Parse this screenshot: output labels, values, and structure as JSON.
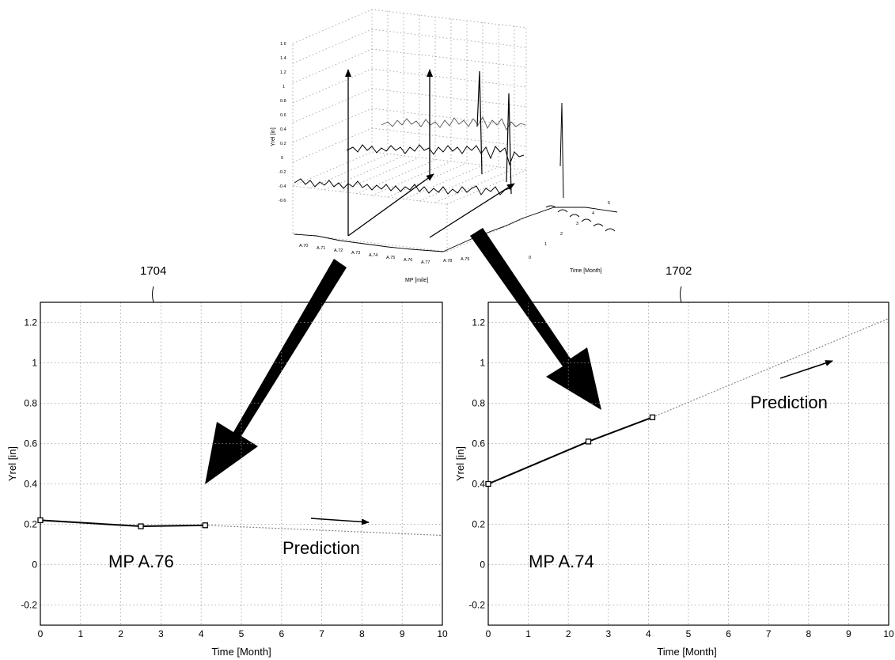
{
  "figure": {
    "ref_left": "1704",
    "ref_right": "1702"
  },
  "top_plot": {
    "type": "3d-line",
    "ylabel": "Yrel [in]",
    "xlabel": "MP [mile]",
    "zlabel": "Time [Month]",
    "mp_ticks": [
      "A.70",
      "A.71",
      "A.72",
      "A.73",
      "A.74",
      "A.75",
      "A.76",
      "A.77",
      "A.78",
      "A.79"
    ],
    "yrel_ticks": [
      "-0.6",
      "-0.4",
      "-0.2",
      "0",
      "0.2",
      "0.4",
      "0.6",
      "0.8",
      "1",
      "1.2",
      "1.4",
      "1.6"
    ],
    "time_ticks": [
      "0",
      "1",
      "2",
      "3",
      "4",
      "5"
    ],
    "series": [
      {
        "time_month": 0
      },
      {
        "time_month": 2.5
      },
      {
        "time_month": 4
      }
    ]
  },
  "chart_data": [
    {
      "type": "line",
      "label": "MP A.76",
      "annotation": "Prediction",
      "xlabel": "Time [Month]",
      "ylabel": "Yrel [in]",
      "xlim": [
        0,
        10
      ],
      "ylim": [
        -0.3,
        1.3
      ],
      "xticks": [
        0,
        1,
        2,
        3,
        4,
        5,
        6,
        7,
        8,
        9,
        10
      ],
      "yticks": [
        -0.2,
        0,
        0.2,
        0.4,
        0.6,
        0.8,
        1,
        1.2
      ],
      "ytick_labels": [
        "-0.2",
        "0",
        "0.2",
        "0.4",
        "0.6",
        "0.8",
        "1",
        "1.2"
      ],
      "grid": true,
      "measured": {
        "x": [
          0,
          2.5,
          4.1
        ],
        "y": [
          0.22,
          0.19,
          0.195
        ]
      },
      "prediction": {
        "x": [
          4.1,
          10
        ],
        "y": [
          0.195,
          0.145
        ]
      }
    },
    {
      "type": "line",
      "label": "MP A.74",
      "annotation": "Prediction",
      "xlabel": "Time [Month]",
      "ylabel": "Yrel [in]",
      "xlim": [
        0,
        10
      ],
      "ylim": [
        -0.3,
        1.3
      ],
      "xticks": [
        0,
        1,
        2,
        3,
        4,
        5,
        6,
        7,
        8,
        9,
        10
      ],
      "yticks": [
        -0.2,
        0,
        0.2,
        0.4,
        0.6,
        0.8,
        1,
        1.2
      ],
      "ytick_labels": [
        "-0.2",
        "0",
        "0.2",
        "0.4",
        "0.6",
        "0.8",
        "1",
        "1.2"
      ],
      "grid": true,
      "measured": {
        "x": [
          0,
          2.5,
          4.1
        ],
        "y": [
          0.4,
          0.61,
          0.73
        ]
      },
      "prediction": {
        "x": [
          4.1,
          10
        ],
        "y": [
          0.73,
          1.22
        ]
      }
    }
  ]
}
